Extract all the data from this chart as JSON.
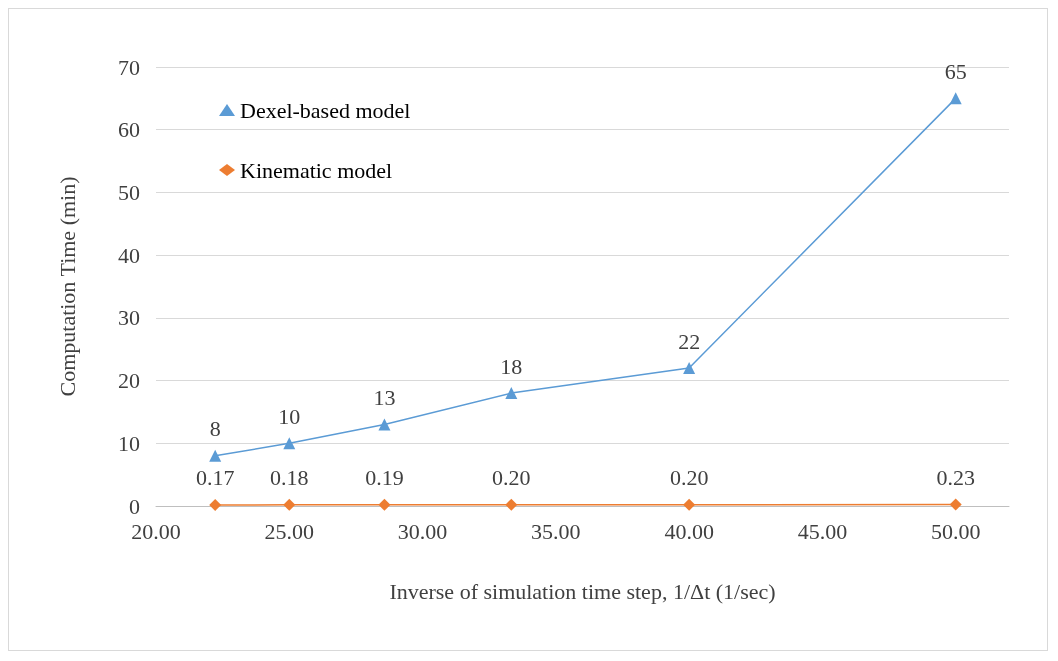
{
  "chart_data": {
    "type": "line",
    "xlabel": "Inverse of simulation time step, 1/Δt (1/sec)",
    "ylabel": "Computation Time (min)",
    "x": [
      22.22,
      25,
      28.57,
      33.33,
      40,
      50
    ],
    "series": [
      {
        "name": "Dexel-based model",
        "color": "#5b9bd5",
        "marker": "triangle",
        "values": [
          8,
          10,
          13,
          18,
          22,
          65
        ],
        "value_labels": [
          "8",
          "10",
          "13",
          "18",
          "22",
          "65"
        ]
      },
      {
        "name": "Kinematic model",
        "color": "#ed7d31",
        "marker": "diamond",
        "values": [
          0.17,
          0.18,
          0.19,
          0.2,
          0.2,
          0.23
        ],
        "value_labels": [
          "0.17",
          "0.18",
          "0.19",
          "0.20",
          "0.20",
          "0.23"
        ]
      }
    ],
    "xlim": [
      20,
      52
    ],
    "xticks": [
      {
        "value": 20,
        "label": "20.00"
      },
      {
        "value": 25,
        "label": "25.00"
      },
      {
        "value": 30,
        "label": "30.00"
      },
      {
        "value": 35,
        "label": "35.00"
      },
      {
        "value": 40,
        "label": "40.00"
      },
      {
        "value": 45,
        "label": "45.00"
      },
      {
        "value": 50,
        "label": "50.00"
      }
    ],
    "ylim": [
      0,
      70
    ],
    "yticks": [
      0,
      10,
      20,
      30,
      40,
      50,
      60,
      70
    ],
    "grid": "y",
    "legend": "top left",
    "line_style": "solid"
  }
}
